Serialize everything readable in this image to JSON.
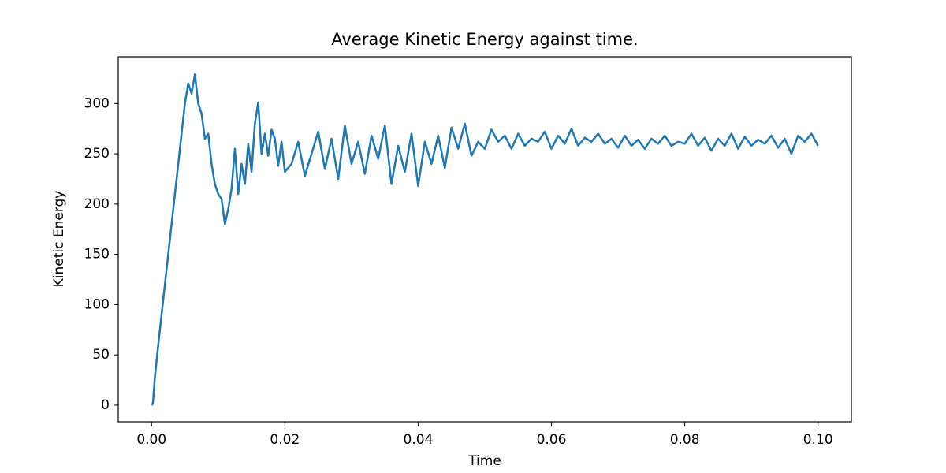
{
  "chart_data": {
    "type": "line",
    "title": "Average Kinetic Energy against time.",
    "x_label": "Time",
    "y_label": "Kinetic Energy",
    "x": [
      0,
      0.0002,
      0.0005,
      0.001,
      0.0015,
      0.002,
      0.0025,
      0.003,
      0.0035,
      0.004,
      0.0045,
      0.005,
      0.0055,
      0.006,
      0.0065,
      0.007,
      0.0075,
      0.008,
      0.0085,
      0.009,
      0.0095,
      0.01,
      0.0105,
      0.011,
      0.0115,
      0.012,
      0.0125,
      0.013,
      0.0135,
      0.014,
      0.0145,
      0.015,
      0.0155,
      0.016,
      0.0165,
      0.017,
      0.0175,
      0.018,
      0.0185,
      0.019,
      0.0195,
      0.02,
      0.021,
      0.022,
      0.023,
      0.024,
      0.025,
      0.026,
      0.027,
      0.028,
      0.029,
      0.03,
      0.031,
      0.032,
      0.033,
      0.034,
      0.035,
      0.036,
      0.037,
      0.038,
      0.039,
      0.04,
      0.041,
      0.042,
      0.043,
      0.044,
      0.045,
      0.046,
      0.047,
      0.048,
      0.049,
      0.05,
      0.051,
      0.052,
      0.053,
      0.054,
      0.055,
      0.056,
      0.057,
      0.058,
      0.059,
      0.06,
      0.061,
      0.062,
      0.063,
      0.064,
      0.065,
      0.066,
      0.067,
      0.068,
      0.069,
      0.07,
      0.071,
      0.072,
      0.073,
      0.074,
      0.075,
      0.076,
      0.077,
      0.078,
      0.079,
      0.08,
      0.081,
      0.082,
      0.083,
      0.084,
      0.085,
      0.086,
      0.087,
      0.088,
      0.089,
      0.09,
      0.091,
      0.092,
      0.093,
      0.094,
      0.095,
      0.096,
      0.097,
      0.098,
      0.099,
      0.1
    ],
    "series": [
      {
        "color": "#1f77b4",
        "values": [
          0,
          2,
          28,
          60,
          90,
          120,
          150,
          180,
          210,
          240,
          270,
          300,
          320,
          310,
          329,
          300,
          290,
          265,
          270,
          240,
          220,
          210,
          205,
          180,
          195,
          215,
          255,
          210,
          240,
          220,
          260,
          232,
          280,
          301,
          250,
          270,
          248,
          274,
          265,
          238,
          262,
          232,
          240,
          262,
          228,
          250,
          272,
          235,
          265,
          225,
          278,
          240,
          262,
          230,
          268,
          245,
          278,
          220,
          258,
          232,
          270,
          218,
          262,
          240,
          268,
          236,
          276,
          255,
          280,
          248,
          262,
          255,
          274,
          262,
          268,
          255,
          270,
          258,
          265,
          262,
          272,
          255,
          268,
          260,
          275,
          258,
          266,
          262,
          270,
          260,
          265,
          256,
          268,
          258,
          264,
          255,
          265,
          260,
          268,
          258,
          262,
          260,
          270,
          258,
          266,
          253,
          265,
          258,
          270,
          255,
          267,
          258,
          264,
          260,
          268,
          256,
          265,
          250,
          268,
          262,
          270,
          258
        ]
      }
    ],
    "xlim": [
      -0.005,
      0.105
    ],
    "ylim": [
      -16.5,
      346.5
    ],
    "xticks": [
      {
        "value": 0,
        "label": "0.00"
      },
      {
        "value": 0.02,
        "label": "0.02"
      },
      {
        "value": 0.04,
        "label": "0.04"
      },
      {
        "value": 0.06,
        "label": "0.06"
      },
      {
        "value": 0.08,
        "label": "0.08"
      },
      {
        "value": 0.1,
        "label": "0.10"
      }
    ],
    "yticks": [
      0,
      50,
      100,
      150,
      200,
      250,
      300
    ]
  }
}
